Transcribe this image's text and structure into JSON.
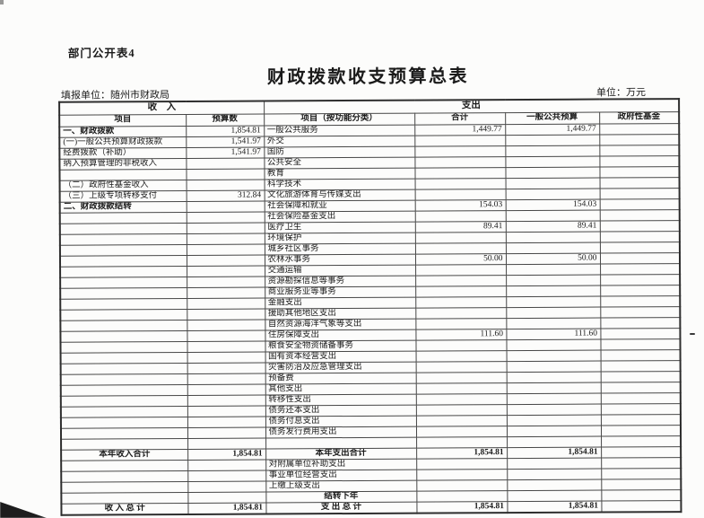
{
  "page": {
    "corner_note": "部门公开表4",
    "title": "财政拨款收支预算总表",
    "reporting_unit": "填报单位：随州市财政局",
    "unit_note": "单位：万元"
  },
  "colors": {
    "ink": "#1a1a1a",
    "grid_line": "#474747",
    "paper": "#fcfcfb"
  },
  "table": {
    "header": {
      "income_group": "收　入",
      "expense_group": "支出",
      "columns": [
        "项目",
        "预算数",
        "项目（按功能分类）",
        "合计",
        "一般公共预算",
        "政府性基金"
      ]
    },
    "rows": [
      {
        "in": "一、财政拨款",
        "inb": true,
        "inv": "1,854.81",
        "ex": "一般公共服务",
        "ext": "1,449.77",
        "exg": "1,449.77"
      },
      {
        "in": "(一)一般公共预算财政拨款",
        "inv": "1,541.97",
        "ex": "外交"
      },
      {
        "in": "经费拨款（补助）",
        "ind": 1,
        "inv": "1,541.97",
        "ex": "国防"
      },
      {
        "in": "纳入预算管理的非税收入",
        "ind": 1,
        "ex": "公共安全"
      },
      {
        "ex": "教育"
      },
      {
        "in": "（二）政府性基金收入",
        "indh": true,
        "ex": "科学技术"
      },
      {
        "in": "（三）上级专项转移支付",
        "indh": true,
        "inv": "312.84",
        "ex": "文化旅游体育与传媒支出"
      },
      {
        "in": "二、财政拨款结转",
        "inb": true,
        "ex": "社会保障和就业",
        "ext": "154.03",
        "exg": "154.03"
      },
      {
        "ex": "社会保险基金支出"
      },
      {
        "ex": "医疗卫生",
        "ext": "89.41",
        "exg": "89.41"
      },
      {
        "ex": "环境保护"
      },
      {
        "ex": "城乡社区事务"
      },
      {
        "ex": "农林水事务",
        "ext": "50.00",
        "exg": "50.00"
      },
      {
        "ex": "交通运输"
      },
      {
        "ex": "资源勘探信息等事务"
      },
      {
        "ex": "商业服务业等事务"
      },
      {
        "ex": "金融支出"
      },
      {
        "ex": "援助其他地区支出"
      },
      {
        "ex": "自然资源海洋气象等支出"
      },
      {
        "ex": "住房保障支出",
        "ext": "111.60",
        "exg": "111.60"
      },
      {
        "ex": "粮食安全物资储备事务"
      },
      {
        "ex": "国有资本经营支出"
      },
      {
        "ex": "灾害防治及应急管理支出"
      },
      {
        "ex": "预备费"
      },
      {
        "ex": "其他支出"
      },
      {
        "ex": "转移性支出"
      },
      {
        "ex": "债务还本支出"
      },
      {
        "ex": "债务付息支出"
      },
      {
        "ex": "债务发行费用支出"
      },
      {},
      {
        "in": "本年收入合计",
        "inc": true,
        "inv": "1,854.81",
        "ex": "本年支出合计",
        "exc": true,
        "ext": "1,854.81",
        "exg": "1,854.81",
        "bold": true
      },
      {
        "ex": "对附属单位补助支出"
      },
      {
        "ex": "事业单位经营支出"
      },
      {
        "ex": "上缴上级支出"
      },
      {
        "ex": "结转下年",
        "exc": true,
        "bold": true
      },
      {
        "in": "收 入 总 计",
        "inc": true,
        "inv": "1,854.81",
        "ex": "支 出 总 计",
        "exc": true,
        "ext": "1,854.81",
        "exg": "1,854.81",
        "bold": true
      }
    ]
  }
}
